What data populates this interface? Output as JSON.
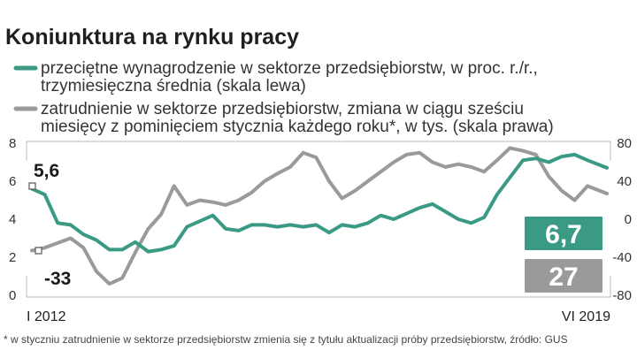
{
  "chart_data": {
    "type": "line",
    "title": "Koniunktura na rynku pracy",
    "series": [
      {
        "name": "przeciętne wynagrodzenie w sektorze przedsiębiorstw, w proc. r./r., trzymiesięczna średnia (skala lewa)",
        "legend_lines": [
          "przeciętne wynagrodzenie w sektorze przedsiębiorstw, w proc. r./r.,",
          "trzymiesięczna średnia (skala lewa)"
        ],
        "axis": "left",
        "color": "#3a9a84",
        "x": [
          "2012-01",
          "2012-03",
          "2012-05",
          "2012-07",
          "2012-09",
          "2012-11",
          "2013-01",
          "2013-03",
          "2013-05",
          "2013-07",
          "2013-09",
          "2013-11",
          "2014-01",
          "2014-03",
          "2014-05",
          "2014-07",
          "2014-09",
          "2014-11",
          "2015-01",
          "2015-03",
          "2015-05",
          "2015-07",
          "2015-09",
          "2015-11",
          "2016-01",
          "2016-03",
          "2016-05",
          "2016-07",
          "2016-09",
          "2016-11",
          "2017-01",
          "2017-03",
          "2017-05",
          "2017-07",
          "2017-09",
          "2017-11",
          "2018-01",
          "2018-03",
          "2018-05",
          "2018-07",
          "2018-09",
          "2018-11",
          "2019-01",
          "2019-03",
          "2019-06"
        ],
        "values": [
          5.6,
          5.3,
          3.8,
          3.7,
          3.2,
          2.9,
          2.4,
          2.4,
          2.8,
          2.3,
          2.4,
          2.6,
          3.6,
          3.9,
          4.2,
          3.5,
          3.4,
          3.7,
          3.7,
          3.6,
          3.7,
          3.6,
          3.7,
          3.3,
          3.7,
          3.6,
          3.8,
          4.2,
          4.0,
          4.3,
          4.6,
          4.8,
          4.4,
          4.0,
          3.8,
          4.1,
          5.3,
          6.2,
          7.1,
          7.2,
          7.0,
          7.3,
          7.4,
          7.1,
          6.7
        ]
      },
      {
        "name": "zatrudnienie w sektorze przedsiębiorstw, zmiana w ciągu sześciu miesięcy z pominięciem stycznia każdego roku*, w tys. (skala prawa)",
        "legend_lines": [
          "zatrudnienie w sektorze przedsiębiorstw, zmiana w ciągu sześciu",
          "miesięcy z pominięciem stycznia każdego roku*, w tys. (skala prawa)"
        ],
        "axis": "right",
        "color": "#9a9a9a",
        "x": [
          "2012-01",
          "2012-03",
          "2012-05",
          "2012-07",
          "2012-09",
          "2012-11",
          "2013-01",
          "2013-03",
          "2013-05",
          "2013-07",
          "2013-09",
          "2013-11",
          "2014-01",
          "2014-03",
          "2014-05",
          "2014-07",
          "2014-09",
          "2014-11",
          "2015-01",
          "2015-03",
          "2015-05",
          "2015-07",
          "2015-09",
          "2015-11",
          "2016-01",
          "2016-03",
          "2016-05",
          "2016-07",
          "2016-09",
          "2016-11",
          "2017-01",
          "2017-03",
          "2017-05",
          "2017-07",
          "2017-09",
          "2017-11",
          "2018-01",
          "2018-03",
          "2018-05",
          "2018-07",
          "2018-09",
          "2018-11",
          "2019-01",
          "2019-03",
          "2019-06"
        ],
        "values": [
          -33,
          -30,
          -25,
          -20,
          -30,
          -55,
          -68,
          -62,
          -35,
          -10,
          5,
          35,
          15,
          20,
          18,
          15,
          20,
          28,
          40,
          48,
          55,
          70,
          65,
          40,
          22,
          30,
          40,
          50,
          60,
          68,
          70,
          60,
          55,
          58,
          55,
          50,
          62,
          75,
          72,
          68,
          45,
          30,
          20,
          35,
          27
        ]
      }
    ],
    "y_left": {
      "ticks": [
        "8",
        "6",
        "4",
        "2",
        "0"
      ],
      "ylim": [
        0,
        8
      ]
    },
    "y_right": {
      "ticks": [
        "80",
        "40",
        "0",
        "-40",
        "-80"
      ],
      "ylim": [
        -80,
        80
      ]
    },
    "x_labels": {
      "start": "I 2012",
      "end": "VI 2019"
    },
    "start_values": {
      "left": "5,6",
      "right": "-33"
    },
    "end_values": {
      "left": "6,7",
      "right": "27"
    },
    "footnote": "* w styczniu zatrudnienie w sektorze przedsiębiorstw zmienia się z tytułu aktualizacji próby przedsiębiorstw, źródło: GUS",
    "grid": false,
    "legend_position": "top"
  }
}
